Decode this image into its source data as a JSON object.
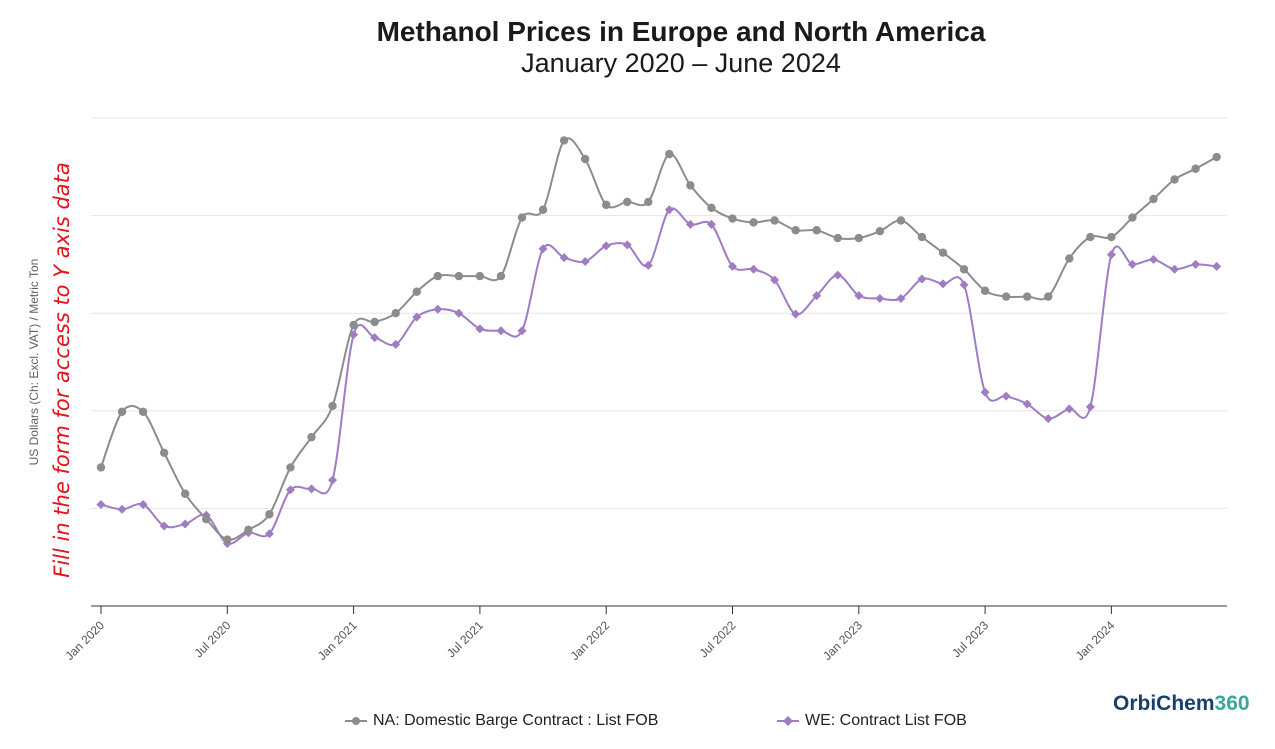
{
  "chart_data": {
    "type": "line",
    "title": "Methanol Prices in Europe and North America",
    "subtitle": "January 2020 – June 2024",
    "ylabel": "US Dollars (Ch: Excl. VAT) / Metric Ton",
    "xlabel": "",
    "ylim": [
      0,
      500
    ],
    "yticks_visible": false,
    "grid": true,
    "legend_position": "bottom",
    "x_ticks": [
      {
        "label": "Jan 2020",
        "index": 0
      },
      {
        "label": "Jul 2020",
        "index": 6
      },
      {
        "label": "Jan 2021",
        "index": 12
      },
      {
        "label": "Jul 2021",
        "index": 18
      },
      {
        "label": "Jan 2022",
        "index": 24
      },
      {
        "label": "Jul 2022",
        "index": 30
      },
      {
        "label": "Jan 2023",
        "index": 36
      },
      {
        "label": "Jul 2023",
        "index": 42
      },
      {
        "label": "Jan 2024",
        "index": 48
      }
    ],
    "n_points": 54,
    "series": [
      {
        "name": "NA: Domestic Barge Contract : List FOB",
        "color": "#8c8c8c",
        "marker": "circle",
        "values": [
          142,
          199,
          199,
          157,
          115,
          89,
          68,
          78,
          94,
          142,
          173,
          205,
          288,
          291,
          300,
          322,
          338,
          338,
          338,
          338,
          398,
          406,
          477,
          458,
          411,
          414,
          414,
          463,
          431,
          408,
          397,
          393,
          395,
          385,
          385,
          377,
          377,
          384,
          395,
          378,
          362,
          345,
          323,
          317,
          317,
          317,
          356,
          378,
          378,
          398,
          417,
          437,
          448,
          460
        ]
      },
      {
        "name": "WE: Contract List FOB",
        "color": "#a07cc3",
        "marker": "diamond",
        "values": [
          104,
          99,
          104,
          82,
          84,
          93,
          64,
          75,
          74,
          119,
          120,
          129,
          278,
          275,
          268,
          296,
          304,
          300,
          284,
          282,
          282,
          366,
          357,
          353,
          369,
          370,
          349,
          406,
          391,
          391,
          348,
          345,
          334,
          299,
          318,
          339,
          318,
          315,
          315,
          335,
          330,
          329,
          219,
          215,
          207,
          192,
          202,
          204,
          360,
          350,
          355,
          345,
          350,
          348
        ]
      }
    ]
  },
  "promo_text": "Fill in the form for access to Y axis data",
  "logo": {
    "text_a": "OrbiChem",
    "text_b": "360"
  }
}
